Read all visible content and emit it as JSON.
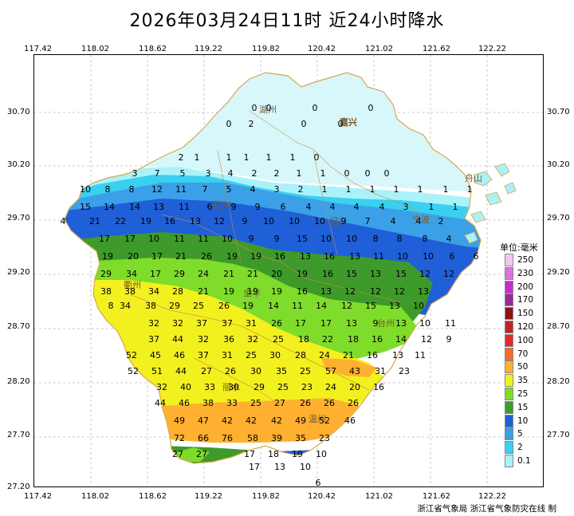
{
  "title": "2026年03月24日11时  近24小时降水",
  "x_ticks": [
    "117.42",
    "118.02",
    "118.62",
    "119.22",
    "119.82",
    "120.42",
    "121.02",
    "121.62",
    "122.22"
  ],
  "y_ticks": [
    "30.70",
    "30.20",
    "29.70",
    "29.20",
    "28.70",
    "28.20",
    "27.70",
    "27.20"
  ],
  "legend": {
    "title": "单位:毫米",
    "items": [
      {
        "label": "250",
        "color": "#f5c6f0"
      },
      {
        "label": "230",
        "color": "#e070e0"
      },
      {
        "label": "200",
        "color": "#c030c8"
      },
      {
        "label": "170",
        "color": "#9a2a9a"
      },
      {
        "label": "150",
        "color": "#8a1515"
      },
      {
        "label": "120",
        "color": "#c02525"
      },
      {
        "label": "100",
        "color": "#e62a2a"
      },
      {
        "label": "70",
        "color": "#ff6a2a"
      },
      {
        "label": "50",
        "color": "#ffb030"
      },
      {
        "label": "35",
        "color": "#f3f020"
      },
      {
        "label": "25",
        "color": "#7fdc2a"
      },
      {
        "label": "15",
        "color": "#3e9a2a"
      },
      {
        "label": "10",
        "color": "#1f5fd8"
      },
      {
        "label": "5",
        "color": "#3aa0e8"
      },
      {
        "label": "2",
        "color": "#3ad0f0"
      },
      {
        "label": "0.1",
        "color": "#aaf2fa"
      }
    ]
  },
  "cities": [
    "湖州",
    "嘉兴",
    "杭州",
    "绍兴",
    "宁波",
    "金华",
    "衢州",
    "台州",
    "丽水",
    "温州",
    "舟山"
  ],
  "credit": "浙江省气象局  浙江省气象防灾在线  制",
  "station_rows": [
    [
      "0",
      "0",
      "0",
      "0"
    ],
    [
      "0",
      "2",
      "0",
      "0"
    ],
    [
      "2",
      "1",
      "1",
      "1",
      "1",
      "1",
      "0"
    ],
    [
      "3",
      "7",
      "5",
      "3",
      "4",
      "2",
      "2",
      "1",
      "1",
      "0",
      "0",
      "0"
    ],
    [
      "10",
      "8",
      "8",
      "12",
      "11",
      "7",
      "5",
      "4",
      "3",
      "2",
      "1",
      "1",
      "1",
      "1",
      "1",
      "1",
      "1"
    ],
    [
      "15",
      "14",
      "14",
      "13",
      "11",
      "6",
      "9",
      "9",
      "6",
      "4",
      "4",
      "4",
      "4",
      "3",
      "1",
      "1"
    ],
    [
      "4",
      "21",
      "22",
      "19",
      "16",
      "13",
      "12",
      "9",
      "10",
      "10",
      "10",
      "9",
      "7",
      "4",
      "4",
      "2"
    ],
    [
      "17",
      "17",
      "10",
      "11",
      "11",
      "10",
      "9",
      "9",
      "15",
      "10",
      "10",
      "8",
      "8",
      "8",
      "4"
    ],
    [
      "19",
      "20",
      "17",
      "21",
      "26",
      "19",
      "19",
      "16",
      "13",
      "16",
      "13",
      "11",
      "10",
      "10",
      "6",
      "6"
    ],
    [
      "29",
      "34",
      "17",
      "29",
      "24",
      "21",
      "21",
      "20",
      "19",
      "16",
      "15",
      "13",
      "15",
      "12",
      "12"
    ],
    [
      "38",
      "38",
      "34",
      "28",
      "21",
      "19",
      "19",
      "19",
      "16",
      "13",
      "12",
      "12",
      "12",
      "13"
    ],
    [
      "8",
      "34",
      "38",
      "29",
      "25",
      "26",
      "19",
      "14",
      "11",
      "14",
      "12",
      "15",
      "13",
      "10"
    ],
    [
      "32",
      "32",
      "37",
      "37",
      "31",
      "26",
      "17",
      "17",
      "13",
      "9",
      "13",
      "10",
      "11"
    ],
    [
      "37",
      "44",
      "32",
      "36",
      "32",
      "25",
      "18",
      "22",
      "18",
      "16",
      "14",
      "12",
      "9"
    ],
    [
      "52",
      "45",
      "46",
      "37",
      "31",
      "25",
      "30",
      "28",
      "24",
      "21",
      "16",
      "13",
      "11"
    ],
    [
      "52",
      "51",
      "44",
      "27",
      "26",
      "30",
      "35",
      "25",
      "57",
      "43",
      "31",
      "23"
    ],
    [
      "32",
      "40",
      "33",
      "30",
      "29",
      "25",
      "23",
      "24",
      "20",
      "16"
    ],
    [
      "44",
      "46",
      "38",
      "33",
      "25",
      "27",
      "26",
      "26",
      "26"
    ],
    [
      "49",
      "47",
      "42",
      "42",
      "42",
      "49",
      "52",
      "46"
    ],
    [
      "72",
      "66",
      "76",
      "58",
      "39",
      "35",
      "23"
    ],
    [
      "27",
      "27",
      "17",
      "18",
      "19",
      "10"
    ],
    [
      "17",
      "13",
      "10"
    ],
    [
      "6"
    ]
  ]
}
